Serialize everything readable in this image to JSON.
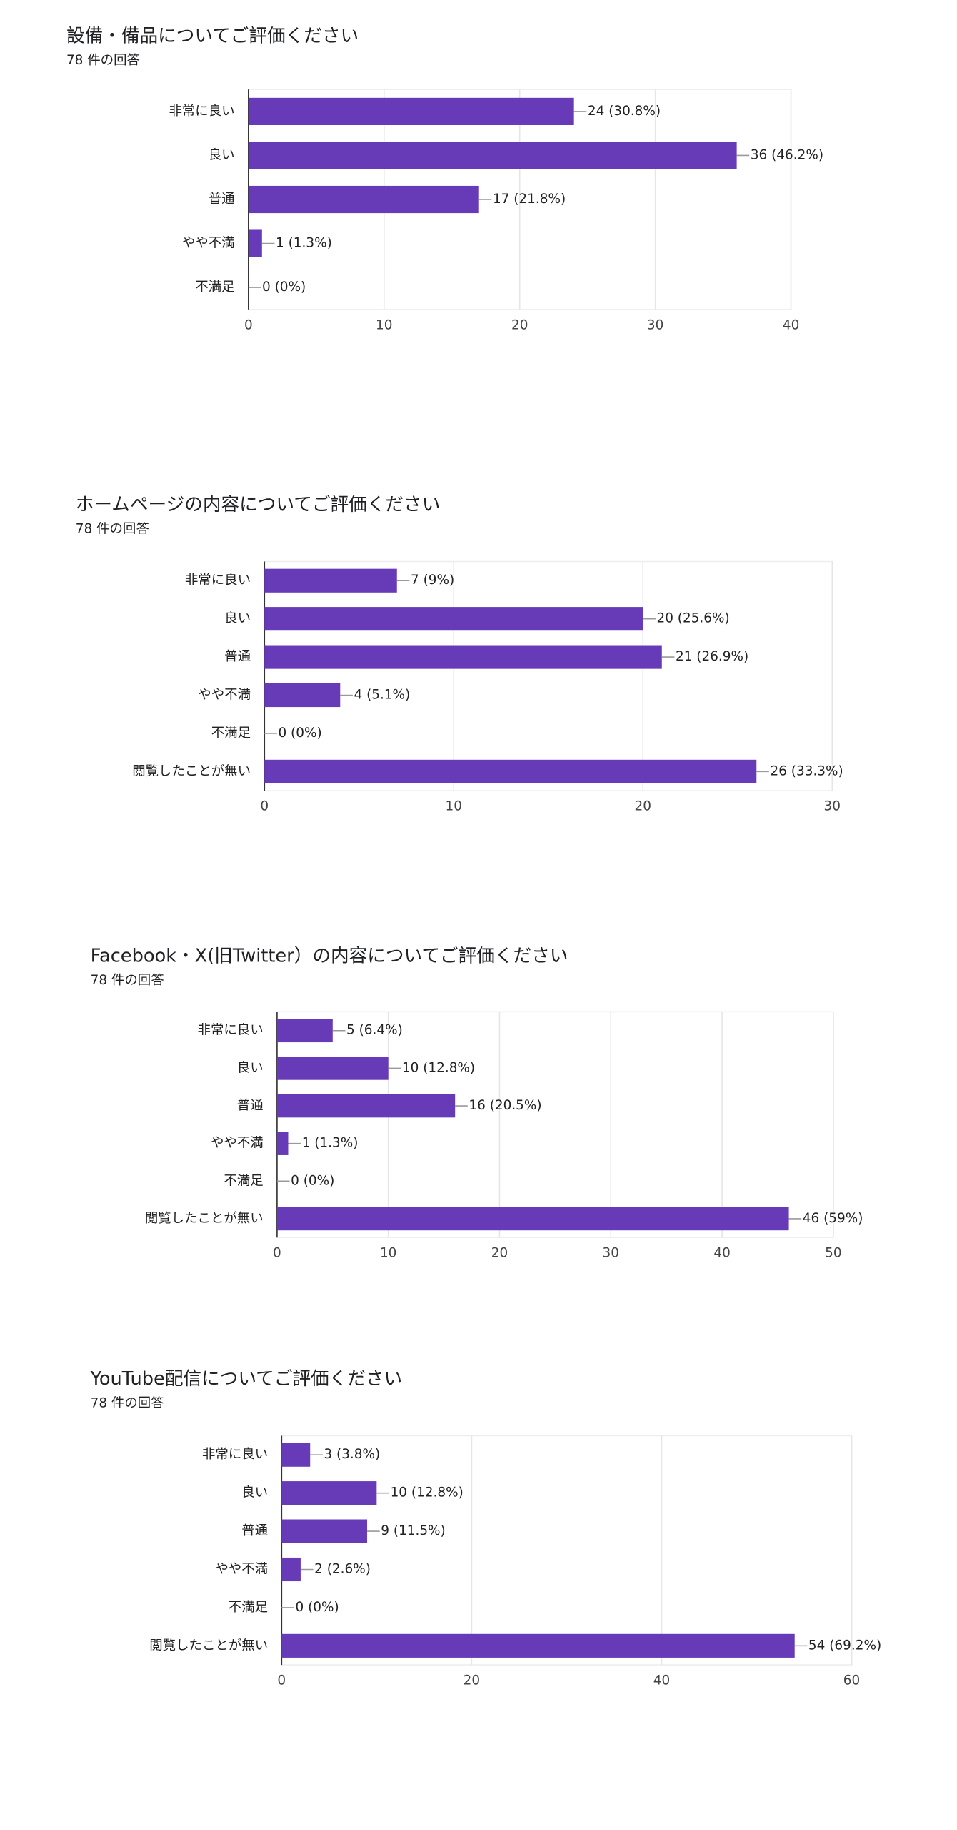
{
  "chart_data": [
    {
      "type": "bar",
      "orientation": "horizontal",
      "title": "設備・備品についてご評価ください",
      "subtitle": "78 件の回答",
      "categories": [
        "非常に良い",
        "良い",
        "普通",
        "やや不満",
        "不満足"
      ],
      "values": [
        24,
        36,
        17,
        1,
        0
      ],
      "value_labels": [
        "24 (30.8%)",
        "36 (46.2%)",
        "17 (21.8%)",
        "1 (1.3%)",
        "0 (0%)"
      ],
      "color": "#673ab7",
      "xlim": [
        0,
        40
      ],
      "xticks": [
        0,
        10,
        20,
        30,
        40
      ],
      "grid": true
    },
    {
      "type": "bar",
      "orientation": "horizontal",
      "title": "ホームページの内容についてご評価ください",
      "subtitle": "78 件の回答",
      "categories": [
        "非常に良い",
        "良い",
        "普通",
        "やや不満",
        "不満足",
        "閲覧したことが無い"
      ],
      "values": [
        7,
        20,
        21,
        4,
        0,
        26
      ],
      "value_labels": [
        "7 (9%)",
        "20 (25.6%)",
        "21 (26.9%)",
        "4 (5.1%)",
        "0 (0%)",
        "26 (33.3%)"
      ],
      "color": "#673ab7",
      "xlim": [
        0,
        30
      ],
      "xticks": [
        0,
        10,
        20,
        30
      ],
      "grid": true
    },
    {
      "type": "bar",
      "orientation": "horizontal",
      "title": "Facebook・X(旧Twitter）の内容についてご評価ください",
      "subtitle": "78 件の回答",
      "categories": [
        "非常に良い",
        "良い",
        "普通",
        "やや不満",
        "不満足",
        "閲覧したことが無い"
      ],
      "values": [
        5,
        10,
        16,
        1,
        0,
        46
      ],
      "value_labels": [
        "5 (6.4%)",
        "10 (12.8%)",
        "16 (20.5%)",
        "1 (1.3%)",
        "0 (0%)",
        "46 (59%)"
      ],
      "color": "#673ab7",
      "xlim": [
        0,
        50
      ],
      "xticks": [
        0,
        10,
        20,
        30,
        40,
        50
      ],
      "grid": true
    },
    {
      "type": "bar",
      "orientation": "horizontal",
      "title": "YouTube配信についてご評価ください",
      "subtitle": "78 件の回答",
      "categories": [
        "非常に良い",
        "良い",
        "普通",
        "やや不満",
        "不満足",
        "閲覧したことが無い"
      ],
      "values": [
        3,
        10,
        9,
        2,
        0,
        54
      ],
      "value_labels": [
        "3 (3.8%)",
        "10 (12.8%)",
        "9 (11.5%)",
        "2 (2.6%)",
        "0 (0%)",
        "54 (69.2%)"
      ],
      "color": "#673ab7",
      "xlim": [
        0,
        60
      ],
      "xticks": [
        0,
        20,
        40,
        60
      ],
      "grid": true
    }
  ]
}
